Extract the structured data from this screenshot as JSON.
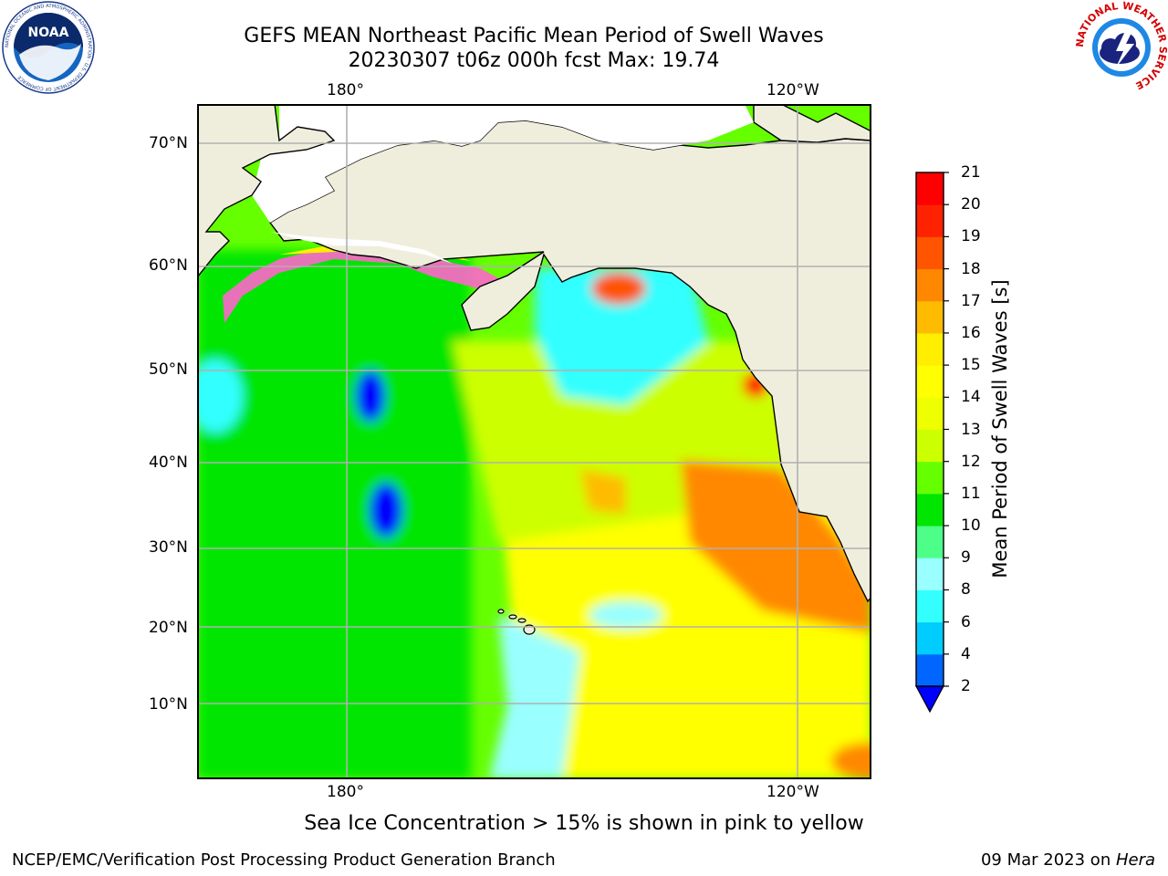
{
  "title": {
    "line1": "GEFS MEAN Northeast Pacific Mean Period of Swell Waves",
    "line2": "20230307 t06z 000h fcst   Max: 19.74"
  },
  "map": {
    "top_labels": [
      "180°",
      "120°W"
    ],
    "bottom_labels": [
      "180°",
      "120°W"
    ],
    "lat_labels": [
      "70°N",
      "60°N",
      "50°N",
      "40°N",
      "30°N",
      "20°N",
      "10°N"
    ],
    "land_color": "#efeedd",
    "grid_color": "#b0b0b0",
    "coast_color": "#000000"
  },
  "chart_data": {
    "type": "heatmap",
    "title": "GEFS MEAN Northeast Pacific Mean Period of Swell Waves",
    "subtitle": "20230307 t06z 000h fcst   Max: 19.74",
    "max_value": 19.74,
    "colorbar": {
      "label": "Mean Period of Swell Waves [s]",
      "ticks": [
        2,
        4,
        6,
        8,
        9,
        10,
        11,
        12,
        13,
        14,
        15,
        16,
        17,
        18,
        19,
        20,
        21
      ],
      "colors": [
        "#0066ff",
        "#00ccff",
        "#33ffff",
        "#99ffff",
        "#4dff88",
        "#00e600",
        "#66ff00",
        "#ccff00",
        "#eeff00",
        "#ffff00",
        "#ffee00",
        "#ffbb00",
        "#ff8800",
        "#ff5500",
        "#ff2200",
        "#ff0000"
      ],
      "under_color": "#0000ff",
      "extend": "min"
    }
  },
  "footer": {
    "note": "Sea Ice Concentration > 15% is shown in pink to yellow",
    "credit": "NCEP/EMC/Verification Post Processing Product Generation Branch",
    "date": "09 Mar 2023 on ",
    "machine": "Hera"
  },
  "logos": {
    "noaa_text": "NOAA",
    "noaa_ring": "NATIONAL OCEANIC AND ATMOSPHERIC ADMINISTRATION · U.S. DEPARTMENT OF COMMERCE",
    "nws_ring": "NATIONAL WEATHER SERVICE"
  }
}
